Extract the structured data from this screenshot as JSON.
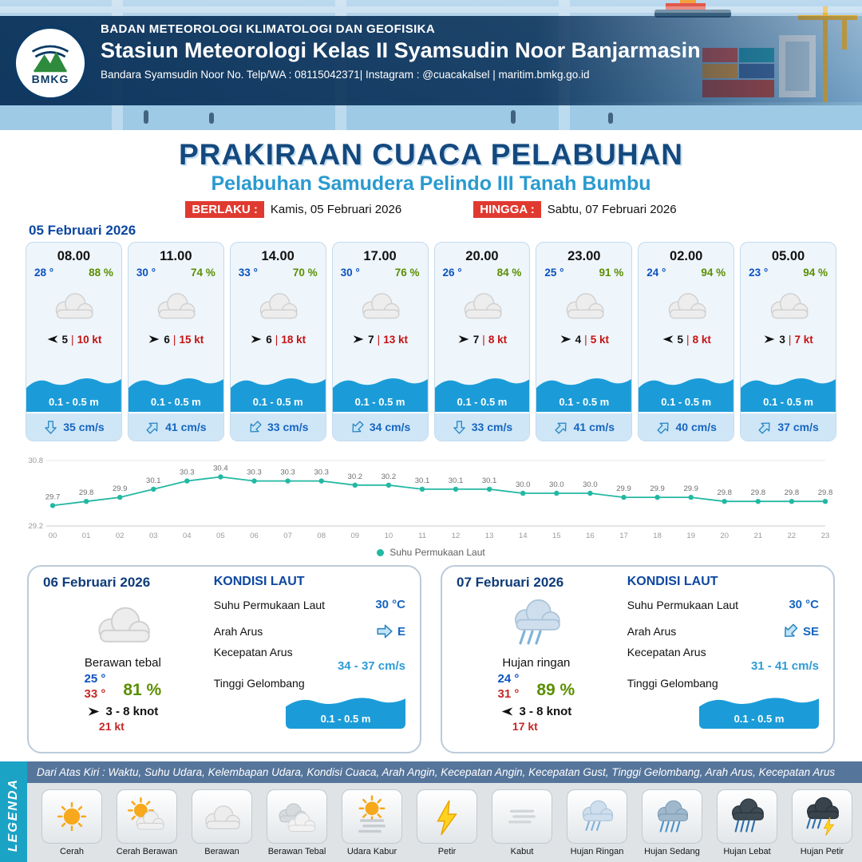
{
  "header": {
    "logo_text": "BMKG",
    "line1": "BADAN METEOROLOGI KLIMATOLOGI DAN GEOFISIKA",
    "line2": "Stasiun Meteorologi Kelas II Syamsudin Noor Banjarmasin",
    "line3": "Bandara Syamsudin Noor No. Telp/WA : 08115042371| Instagram : @cuacakalsel | maritim.bmkg.go.id"
  },
  "title": {
    "main": "PRAKIRAAN CUACA PELABUHAN",
    "sub": "Pelabuhan Samudera Pelindo III Tanah Bumbu",
    "valid_from_label": "BERLAKU :",
    "valid_from": "Kamis, 05 Februari 2026",
    "valid_to_label": "HINGGA :",
    "valid_to": "Sabtu, 07 Februari 2026"
  },
  "forecast": {
    "date": "05 Februari 2026",
    "cards": [
      {
        "time": "08.00",
        "temp": "28 °",
        "humidity": "88 %",
        "icon": "cloud",
        "wind_dir": "left",
        "wind_speed": "5",
        "gust": "10 kt",
        "wave": "0.1 - 0.5 m",
        "current_dir": "down",
        "current": "35 cm/s"
      },
      {
        "time": "11.00",
        "temp": "30 °",
        "humidity": "74 %",
        "icon": "cloud",
        "wind_dir": "right",
        "wind_speed": "6",
        "gust": "15 kt",
        "wave": "0.1 - 0.5 m",
        "current_dir": "up-right",
        "current": "41 cm/s"
      },
      {
        "time": "14.00",
        "temp": "33 °",
        "humidity": "70 %",
        "icon": "cloud",
        "wind_dir": "right",
        "wind_speed": "6",
        "gust": "18 kt",
        "wave": "0.1 - 0.5 m",
        "current_dir": "down-left",
        "current": "33 cm/s"
      },
      {
        "time": "17.00",
        "temp": "30 °",
        "humidity": "76 %",
        "icon": "cloud",
        "wind_dir": "right",
        "wind_speed": "7",
        "gust": "13 kt",
        "wave": "0.1 - 0.5 m",
        "current_dir": "down-left",
        "current": "34 cm/s"
      },
      {
        "time": "20.00",
        "temp": "26 °",
        "humidity": "84 %",
        "icon": "cloud",
        "wind_dir": "right",
        "wind_speed": "7",
        "gust": "8 kt",
        "wave": "0.1 - 0.5 m",
        "current_dir": "down",
        "current": "33 cm/s"
      },
      {
        "time": "23.00",
        "temp": "25 °",
        "humidity": "91 %",
        "icon": "cloud",
        "wind_dir": "right",
        "wind_speed": "4",
        "gust": "5 kt",
        "wave": "0.1 - 0.5 m",
        "current_dir": "up-right",
        "current": "41 cm/s"
      },
      {
        "time": "02.00",
        "temp": "24 °",
        "humidity": "94 %",
        "icon": "cloud",
        "wind_dir": "left",
        "wind_speed": "5",
        "gust": "8 kt",
        "wave": "0.1 - 0.5 m",
        "current_dir": "up-right",
        "current": "40 cm/s"
      },
      {
        "time": "05.00",
        "temp": "23 °",
        "humidity": "94 %",
        "icon": "cloud",
        "wind_dir": "right",
        "wind_speed": "3",
        "gust": "7 kt",
        "wave": "0.1 - 0.5 m",
        "current_dir": "up-right",
        "current": "37 cm/s"
      }
    ]
  },
  "chart_data": {
    "type": "line",
    "title": "",
    "x": [
      "00",
      "01",
      "02",
      "03",
      "04",
      "05",
      "06",
      "07",
      "08",
      "09",
      "10",
      "11",
      "12",
      "13",
      "14",
      "15",
      "16",
      "17",
      "18",
      "19",
      "20",
      "21",
      "22",
      "23"
    ],
    "values": [
      29.7,
      29.8,
      29.9,
      30.1,
      30.3,
      30.4,
      30.3,
      30.3,
      30.3,
      30.2,
      30.2,
      30.1,
      30.1,
      30.1,
      30.0,
      30.0,
      30.0,
      29.9,
      29.9,
      29.9,
      29.8,
      29.8,
      29.8,
      29.8
    ],
    "series_name": "Suhu Permukaan Laut",
    "xlabel": "",
    "ylabel": "",
    "ylim": [
      29.2,
      30.8
    ],
    "grid": false,
    "legend_position": "bottom",
    "line_color": "#23b8a2"
  },
  "days": [
    {
      "date": "06 Februari 2026",
      "icon": "cloud",
      "condition": "Berawan tebal",
      "temp_min": "25 °",
      "temp_max": "33 °",
      "humidity": "81 %",
      "wind_dir": "right",
      "wind": "3 - 8 knot",
      "gust": "21 kt",
      "sea": {
        "title": "KONDISI LAUT",
        "sst_label": "Suhu Permukaan Laut",
        "sst": "30 °C",
        "dir_label": "Arah Arus",
        "dir": "E",
        "dir_arrow": "right",
        "speed_label": "Kecepatan Arus",
        "speed": "34 - 37 cm/s",
        "wave_label": "Tinggi Gelombang",
        "wave": "0.1 - 0.5 m"
      }
    },
    {
      "date": "07 Februari 2026",
      "icon": "rain-light",
      "condition": "Hujan ringan",
      "temp_min": "24 °",
      "temp_max": "31 °",
      "humidity": "89 %",
      "wind_dir": "left",
      "wind": "3 - 8 knot",
      "gust": "17 kt",
      "sea": {
        "title": "KONDISI LAUT",
        "sst_label": "Suhu Permukaan Laut",
        "sst": "30 °C",
        "dir_label": "Arah Arus",
        "dir": "SE",
        "dir_arrow": "down-left",
        "speed_label": "Kecepatan Arus",
        "speed": "31 - 41 cm/s",
        "wave_label": "Tinggi Gelombang",
        "wave": "0.1 - 0.5 m"
      }
    }
  ],
  "legend": {
    "band_label": "LEGENDA",
    "note": "Dari Atas Kiri : Waktu, Suhu Udara, Kelembapan Udara, Kondisi Cuaca, Arah Angin, Kecepatan Angin, Kecepatan Gust, Tinggi Gelombang, Arah Arus, Kecepatan Arus",
    "items": [
      {
        "label": "Cerah",
        "icon": "sun"
      },
      {
        "label": "Cerah Berawan",
        "icon": "sun-cloud"
      },
      {
        "label": "Berawan",
        "icon": "cloud"
      },
      {
        "label": "Berawan Tebal",
        "icon": "clouds"
      },
      {
        "label": "Udara Kabur",
        "icon": "haze"
      },
      {
        "label": "Petir",
        "icon": "lightning"
      },
      {
        "label": "Kabut",
        "icon": "fog"
      },
      {
        "label": "Hujan Ringan",
        "icon": "rain-light"
      },
      {
        "label": "Hujan Sedang",
        "icon": "rain-med"
      },
      {
        "label": "Hujan Lebat",
        "icon": "rain-heavy"
      },
      {
        "label": "Hujan Petir",
        "icon": "thunder-rain"
      }
    ]
  },
  "colors": {
    "accent_blue": "#0d47a1",
    "sub_blue": "#2a9ad0",
    "red": "#e03a30",
    "green": "#5a8f00",
    "wave_blue": "#1b9cd8",
    "teal": "#23b8a2"
  }
}
